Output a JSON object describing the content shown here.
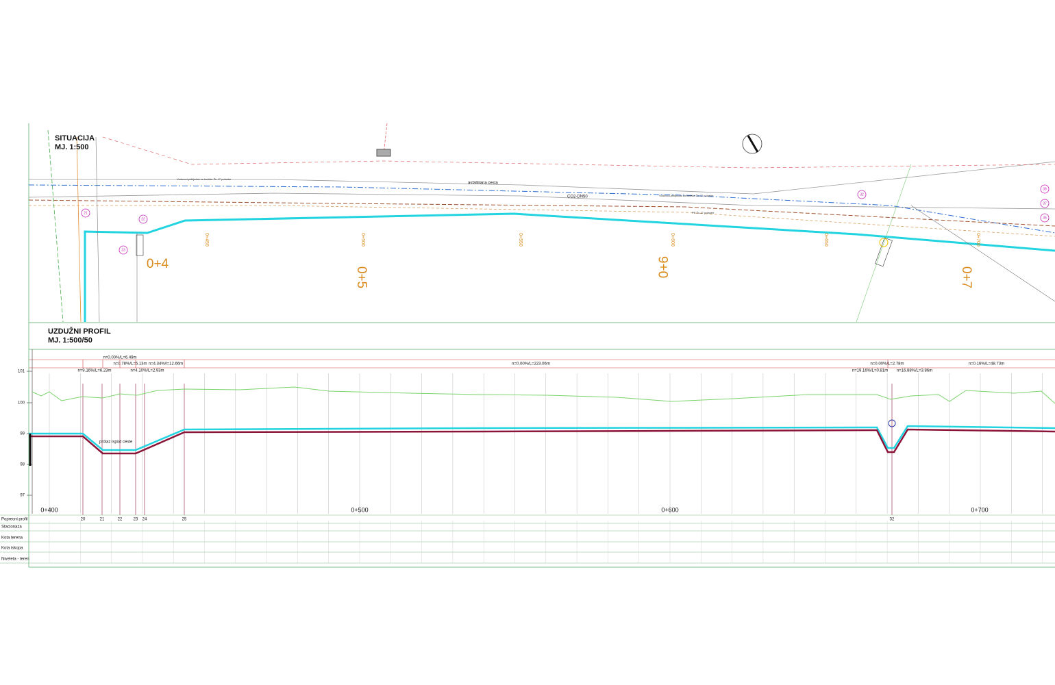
{
  "situacija": {
    "title": "SITUACIJA",
    "scale": "MJ. 1:500",
    "labels": [
      "asfaltirana cesta",
      "CO2-DN50",
      "Vodovod-priključak za kućište Žu-47 polaster",
      "Vodovod-priključak za kućište Žu-47 polaster",
      "PE Žu-47 polaster"
    ],
    "stations": [
      "0+4",
      "0+5",
      "0+6",
      "0+7"
    ],
    "small_stations": [
      "0+450",
      "0+500",
      "0+550",
      "0+600",
      "0+650",
      "0+700"
    ],
    "markers": [
      "21",
      "22",
      "23",
      "32",
      "36",
      "37",
      "38"
    ]
  },
  "profil": {
    "title": "UZDUŽNI PROFIL",
    "scale": "MJ. 1:500/50",
    "slopes_top": [
      "n=0.00%/L=6.49m",
      "n=0.78%/L=5.13m",
      "n=4.34%/l=12.66m",
      "n=0.00%/L=223.06m",
      "n=0.00%/L=2.78m",
      "n=0.16%/L=48.73m"
    ],
    "slopes_bottom": [
      "n=9.16%/L=6.23m",
      "n=4.10%/L=2.93m",
      "n=19.16%/L=0.81m",
      "n=16.88%/L=3.86m"
    ],
    "y_axis": [
      "101",
      "100",
      "99",
      "98",
      "97"
    ],
    "stations": [
      "0+400",
      "0+500",
      "0+600",
      "0+700"
    ],
    "note": "prolaz ispod ceste",
    "profiles": [
      "20",
      "21",
      "22",
      "23",
      "24",
      "25",
      "32"
    ]
  },
  "table": {
    "rows": [
      "Poprecni profil",
      "Stacionaza",
      "Kota terena",
      "Kota iskopa",
      "Niveleta - teren"
    ]
  }
}
